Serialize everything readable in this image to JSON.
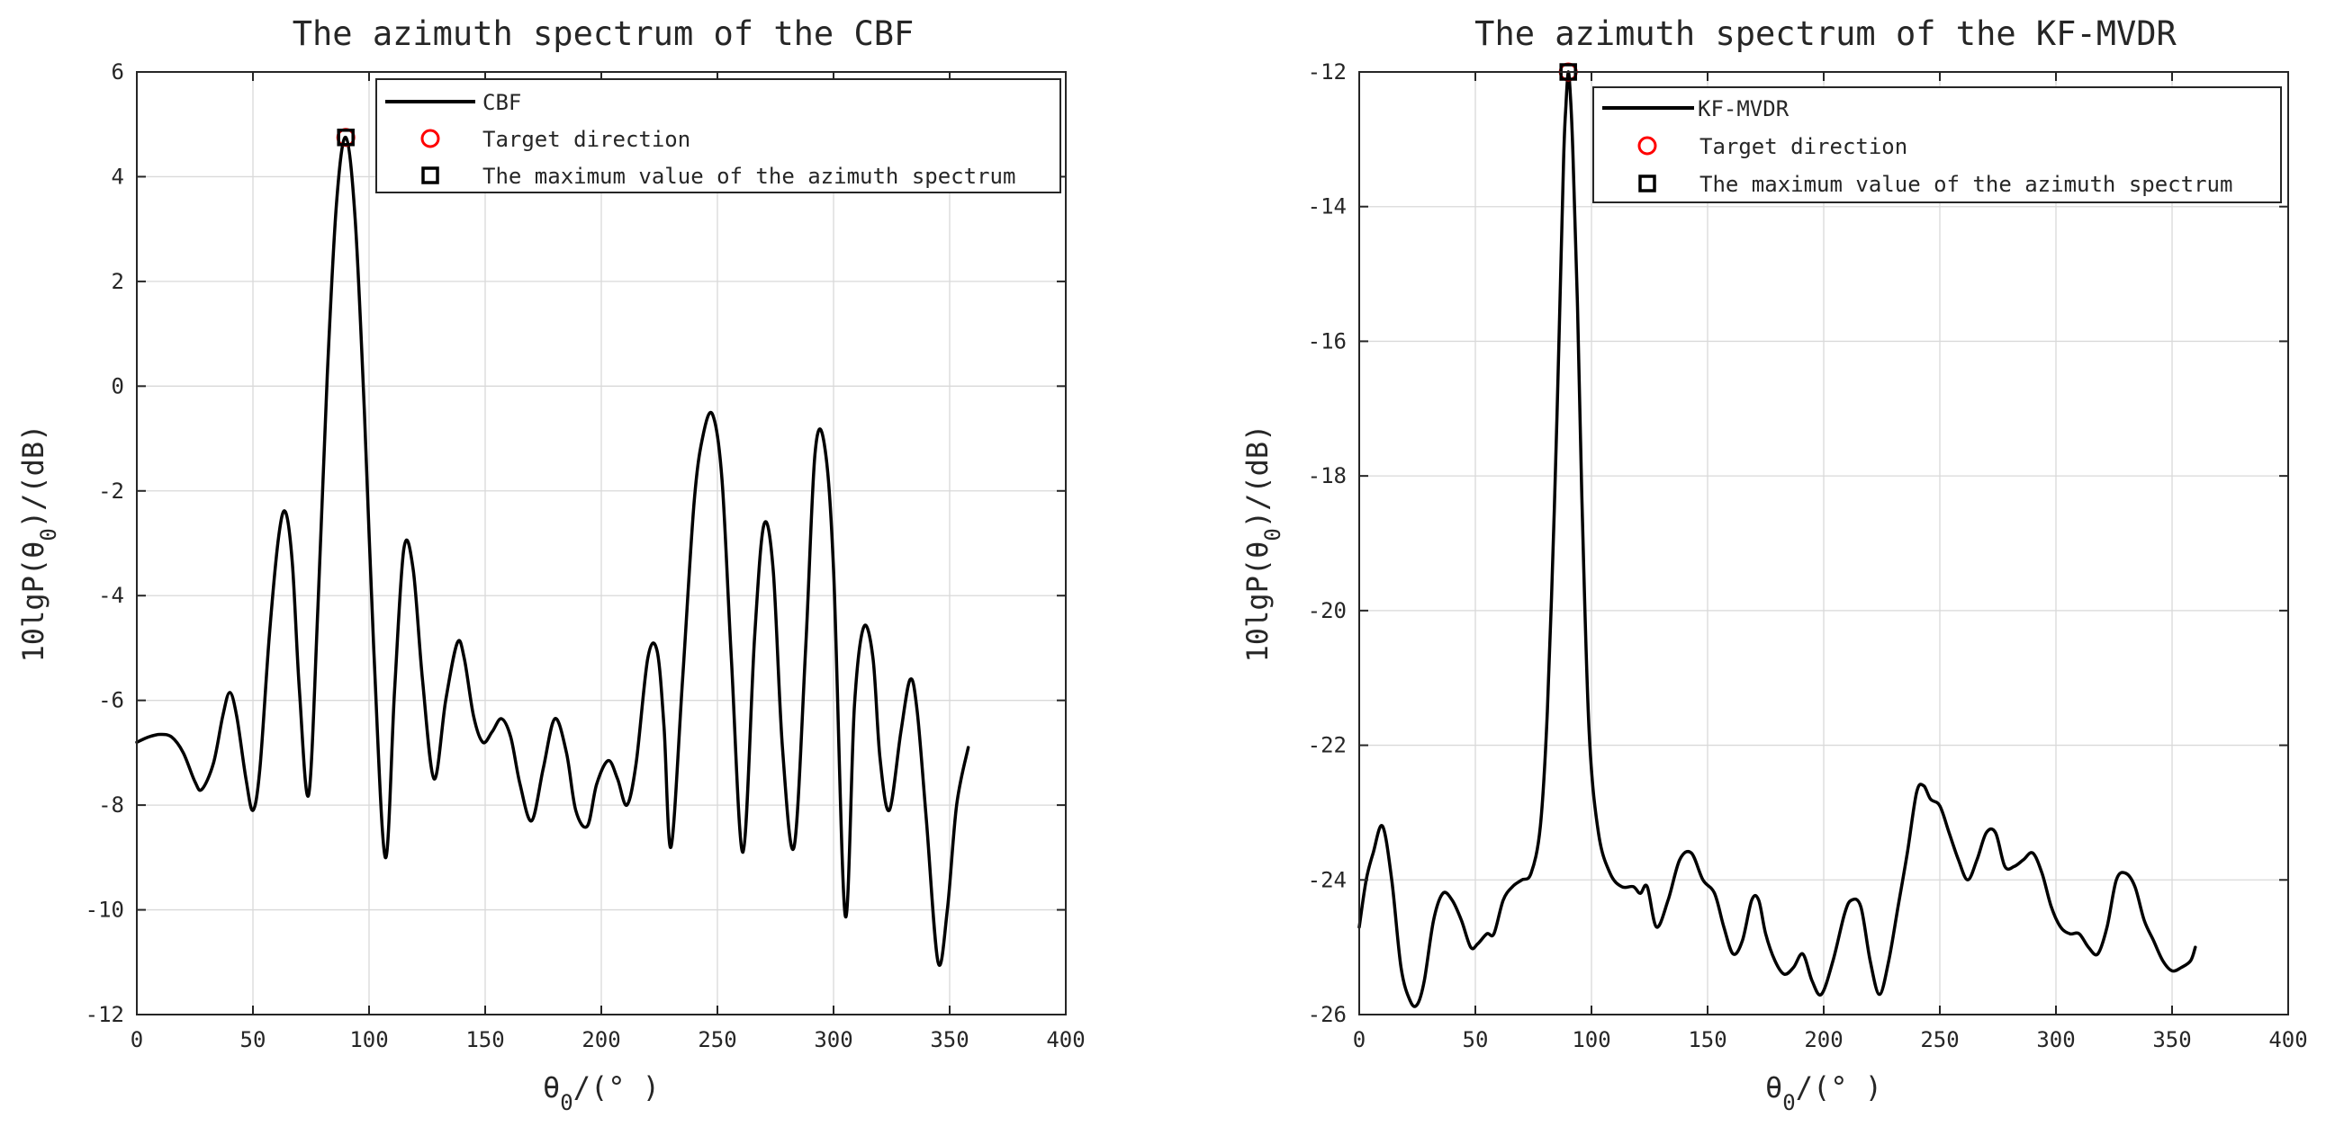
{
  "chart_data": [
    {
      "type": "line",
      "title": "The azimuth spectrum of the CBF",
      "xlabel_main": "θ",
      "xlabel_sub": "0",
      "xlabel_tail": "/(° )",
      "ylabel_main": "10lgP(θ",
      "ylabel_sub": "0",
      "ylabel_tail": ")/(dB)",
      "xlim": [
        0,
        400
      ],
      "ylim": [
        -12,
        6
      ],
      "xticks": [
        0,
        50,
        100,
        150,
        200,
        250,
        300,
        350,
        400
      ],
      "yticks": [
        -12,
        -10,
        -8,
        -6,
        -4,
        -2,
        0,
        2,
        4,
        6
      ],
      "xtick_labels": [
        "0",
        "50",
        "100",
        "150",
        "200",
        "250",
        "300",
        "350",
        "400"
      ],
      "ytick_labels": [
        "-12",
        "-10",
        "-8",
        "-6",
        "-4",
        "-2",
        "0",
        "2",
        "4",
        "6"
      ],
      "grid": true,
      "legend_position": "top-right",
      "legend": [
        {
          "label": "CBF",
          "marker": "line",
          "color": "#000000"
        },
        {
          "label": "Target direction",
          "marker": "circle",
          "color": "#ff0000"
        },
        {
          "label": "The maximum value of the azimuth spectrum",
          "marker": "square",
          "color": "#000000"
        }
      ],
      "series": [
        {
          "name": "CBF",
          "color": "#000000",
          "x": [
            0,
            5,
            10,
            15,
            20,
            25,
            28,
            33,
            37,
            40,
            43,
            47,
            50,
            53,
            57,
            61,
            64,
            67,
            70,
            74,
            78,
            82,
            86,
            90,
            94,
            98,
            102,
            107,
            111,
            115,
            119,
            123,
            128,
            133,
            138,
            141,
            145,
            149,
            153,
            157,
            161,
            165,
            170,
            175,
            180,
            185,
            189,
            194,
            198,
            203,
            207,
            211,
            215,
            220,
            224,
            227,
            230,
            235,
            240,
            244,
            248,
            252,
            256,
            261,
            266,
            270,
            274,
            278,
            283,
            288,
            292,
            296,
            300,
            305,
            309,
            313,
            317,
            320,
            324,
            329,
            333,
            336,
            340,
            345,
            349,
            353,
            358
          ],
          "y": [
            -6.8,
            -6.7,
            -6.65,
            -6.7,
            -7.0,
            -7.55,
            -7.7,
            -7.2,
            -6.3,
            -5.85,
            -6.3,
            -7.5,
            -8.1,
            -7.3,
            -4.8,
            -2.9,
            -2.4,
            -3.4,
            -5.8,
            -7.8,
            -4.2,
            0.2,
            3.5,
            4.75,
            3.2,
            -0.5,
            -5.0,
            -9.0,
            -5.8,
            -3.1,
            -3.5,
            -5.6,
            -7.5,
            -6.0,
            -4.9,
            -5.2,
            -6.3,
            -6.8,
            -6.6,
            -6.35,
            -6.7,
            -7.6,
            -8.3,
            -7.3,
            -6.35,
            -7.0,
            -8.1,
            -8.4,
            -7.6,
            -7.15,
            -7.5,
            -8.0,
            -7.2,
            -5.2,
            -5.05,
            -6.5,
            -8.8,
            -5.6,
            -2.2,
            -0.9,
            -0.55,
            -1.8,
            -5.2,
            -8.9,
            -4.8,
            -2.65,
            -3.5,
            -6.9,
            -8.8,
            -5.0,
            -1.3,
            -1.1,
            -3.5,
            -10.1,
            -6.1,
            -4.6,
            -5.2,
            -7.1,
            -8.1,
            -6.6,
            -5.6,
            -6.2,
            -8.3,
            -11.0,
            -10.0,
            -8.0,
            -6.9
          ]
        }
      ],
      "target_direction": {
        "x": 90,
        "y": 4.75
      },
      "maximum_value": {
        "x": 90,
        "y": 4.75
      }
    },
    {
      "type": "line",
      "title": "The azimuth spectrum of the KF-MVDR",
      "xlabel_main": "θ",
      "xlabel_sub": "0",
      "xlabel_tail": "/(° )",
      "ylabel_main": "10lgP(θ",
      "ylabel_sub": "0",
      "ylabel_tail": ")/(dB)",
      "xlim": [
        0,
        400
      ],
      "ylim": [
        -26,
        -12
      ],
      "xticks": [
        0,
        50,
        100,
        150,
        200,
        250,
        300,
        350,
        400
      ],
      "yticks": [
        -26,
        -24,
        -22,
        -20,
        -18,
        -16,
        -14,
        -12
      ],
      "xtick_labels": [
        "0",
        "50",
        "100",
        "150",
        "200",
        "250",
        "300",
        "350",
        "400"
      ],
      "ytick_labels": [
        "-26",
        "-24",
        "-22",
        "-20",
        "-18",
        "-16",
        "-14",
        "-12"
      ],
      "grid": true,
      "legend_position": "top-right",
      "legend": [
        {
          "label": "KF-MVDR",
          "marker": "line",
          "color": "#000000"
        },
        {
          "label": "Target direction",
          "marker": "circle",
          "color": "#ff0000"
        },
        {
          "label": "The maximum value of the azimuth spectrum",
          "marker": "square",
          "color": "#000000"
        }
      ],
      "series": [
        {
          "name": "KF-MVDR",
          "color": "#000000",
          "x": [
            0,
            3,
            6,
            10,
            14,
            18,
            22,
            25,
            28,
            32,
            36,
            40,
            44,
            48,
            51,
            55,
            58,
            62,
            66,
            70,
            74,
            78,
            81,
            84,
            86,
            88,
            89,
            90,
            91,
            92,
            94,
            96,
            99,
            103,
            108,
            113,
            118,
            121,
            124,
            128,
            133,
            138,
            143,
            148,
            153,
            157,
            161,
            165,
            169,
            172,
            175,
            179,
            183,
            187,
            191,
            195,
            199,
            204,
            209,
            212,
            216,
            220,
            224,
            228,
            232,
            236,
            240,
            243,
            246,
            250,
            254,
            258,
            262,
            266,
            270,
            274,
            278,
            282,
            286,
            290,
            294,
            298,
            302,
            306,
            310,
            314,
            318,
            322,
            326,
            330,
            334,
            338,
            342,
            346,
            350,
            354,
            358,
            360
          ],
          "y": [
            -24.7,
            -24.0,
            -23.6,
            -23.2,
            -24.0,
            -25.3,
            -25.8,
            -25.85,
            -25.5,
            -24.6,
            -24.2,
            -24.3,
            -24.6,
            -25.0,
            -24.95,
            -24.8,
            -24.8,
            -24.3,
            -24.1,
            -24.0,
            -23.9,
            -23.2,
            -21.5,
            -18.5,
            -16.0,
            -13.3,
            -12.5,
            -12.0,
            -12.4,
            -13.2,
            -15.5,
            -18.5,
            -21.8,
            -23.3,
            -23.9,
            -24.1,
            -24.1,
            -24.2,
            -24.1,
            -24.7,
            -24.3,
            -23.7,
            -23.6,
            -24.0,
            -24.2,
            -24.7,
            -25.1,
            -24.9,
            -24.3,
            -24.3,
            -24.8,
            -25.2,
            -25.4,
            -25.3,
            -25.1,
            -25.5,
            -25.7,
            -25.2,
            -24.5,
            -24.3,
            -24.4,
            -25.2,
            -25.7,
            -25.2,
            -24.4,
            -23.6,
            -22.7,
            -22.6,
            -22.8,
            -22.9,
            -23.3,
            -23.7,
            -24.0,
            -23.7,
            -23.3,
            -23.3,
            -23.8,
            -23.8,
            -23.7,
            -23.6,
            -23.9,
            -24.4,
            -24.7,
            -24.8,
            -24.8,
            -25.0,
            -25.1,
            -24.7,
            -24.0,
            -23.9,
            -24.1,
            -24.6,
            -24.9,
            -25.2,
            -25.35,
            -25.3,
            -25.2,
            -25.0
          ]
        }
      ],
      "target_direction": {
        "x": 90,
        "y": -12.0
      },
      "maximum_value": {
        "x": 90,
        "y": -12.0
      }
    }
  ]
}
